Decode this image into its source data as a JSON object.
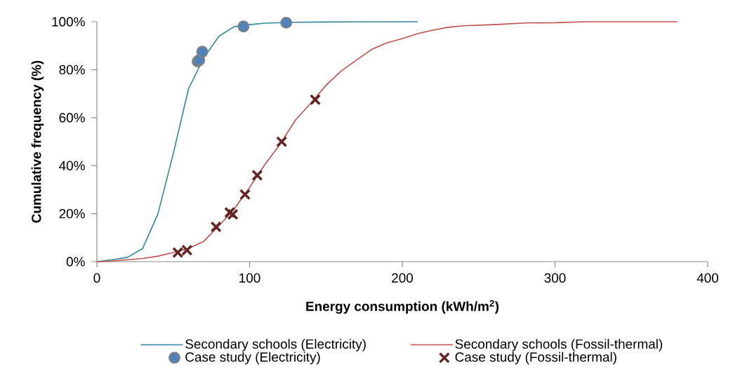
{
  "chart_data": {
    "type": "line",
    "xlabel": "Energy consumption (kWh/m$^{2}$)",
    "ylabel": "Cumulative frequency (%)",
    "xlim": [
      0,
      400
    ],
    "ylim": [
      0,
      100
    ],
    "xticks": [
      0,
      100,
      200,
      300,
      400
    ],
    "yticks": [
      {
        "value": 0,
        "label": "0%"
      },
      {
        "value": 20,
        "label": "20%"
      },
      {
        "value": 40,
        "label": "40%"
      },
      {
        "value": 60,
        "label": "60%"
      },
      {
        "value": 80,
        "label": "80%"
      },
      {
        "value": 100,
        "label": "100%"
      }
    ],
    "grid": false,
    "legend": "bottom",
    "line_style": "solid",
    "series": [
      {
        "name": "Secondary schools (Electricity)",
        "marker": "none",
        "color": "#31859c",
        "x": [
          0,
          10,
          20,
          30,
          40,
          50,
          60,
          70,
          80,
          90,
          100,
          110,
          120,
          130,
          150,
          210
        ],
        "values": [
          0,
          0.8,
          1.8,
          5.5,
          20,
          45,
          72,
          85,
          94,
          98,
          98.8,
          99.4,
          99.6,
          99.8,
          99.9,
          100
        ]
      },
      {
        "name": "Secondary schools (Fossil-thermal)",
        "marker": "none",
        "color": "#c0504d",
        "x": [
          0,
          10,
          20,
          30,
          40,
          50,
          60,
          70,
          80,
          90,
          100,
          110,
          120,
          130,
          140,
          150,
          160,
          170,
          180,
          190,
          200,
          210,
          220,
          230,
          240,
          260,
          280,
          300,
          310,
          320,
          380
        ],
        "values": [
          0,
          0.3,
          0.8,
          1.3,
          2.3,
          3.8,
          5.5,
          8.5,
          15,
          22,
          31,
          40.5,
          49,
          59,
          66,
          73.5,
          79.5,
          84,
          88.5,
          91.2,
          93,
          95,
          96.5,
          97.7,
          98.3,
          98.8,
          99.5,
          99.6,
          99.8,
          100,
          100
        ]
      },
      {
        "name": "Case study (Electricity)",
        "type": "scatter",
        "marker": "circle",
        "color": "#4f81bd",
        "x": [
          66,
          67,
          69,
          96,
          124
        ],
        "values": [
          83.5,
          84,
          87.5,
          98,
          99.6
        ]
      },
      {
        "name": "Case study (Fossil-thermal)",
        "type": "scatter",
        "marker": "cross",
        "color": "#632523",
        "x": [
          53,
          59,
          78,
          87,
          89,
          97,
          105,
          121,
          143
        ],
        "values": [
          3.8,
          4.8,
          14.5,
          20.5,
          19.7,
          28,
          36,
          50,
          67.5
        ]
      }
    ]
  }
}
